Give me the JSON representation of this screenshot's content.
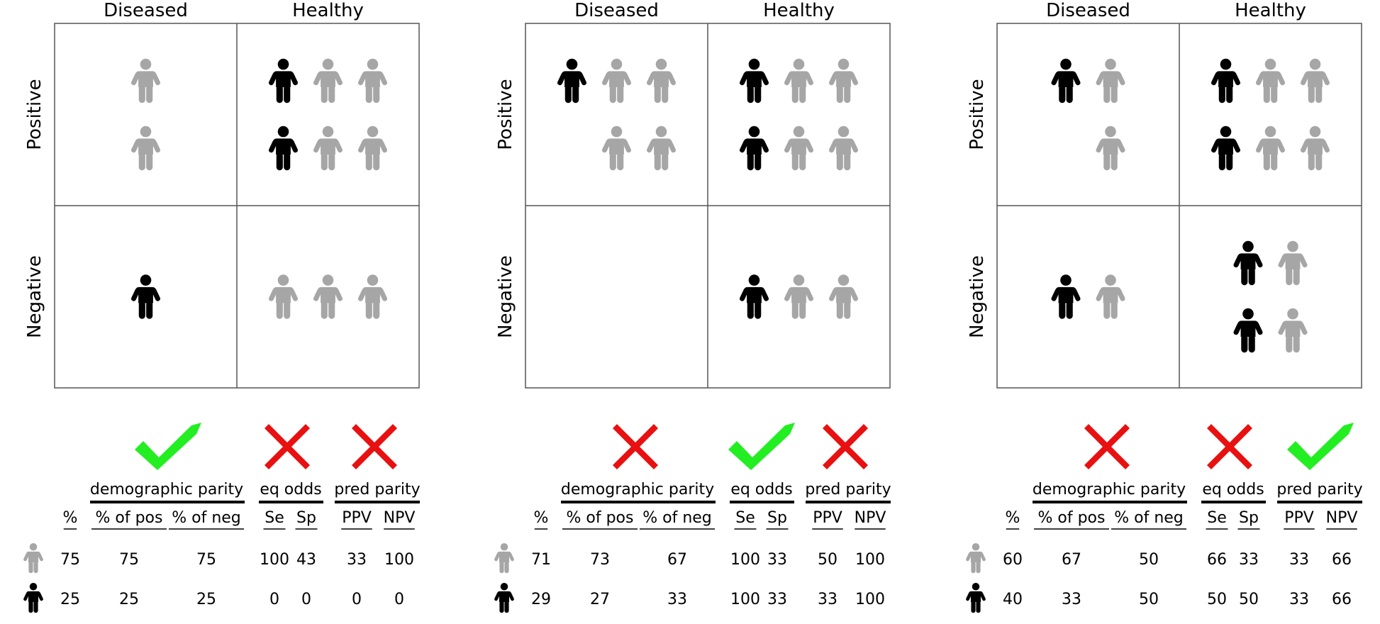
{
  "colors": {
    "gray": "#a6a6a6",
    "black": "#000000",
    "check": "#22ee22",
    "cross": "#e81010",
    "grid": "#555555"
  },
  "icons": {
    "person": "person-icon",
    "check": "check-icon",
    "cross": "cross-icon"
  },
  "labels": {
    "col_diseased": "Diseased",
    "col_healthy": "Healthy",
    "row_positive": "Positive",
    "row_negative": "Negative",
    "demographic_parity": "demographic parity",
    "eq_odds": "eq odds",
    "pred_parity": "pred parity",
    "pct": "%",
    "pct_pos": "% of pos",
    "pct_neg": "% of neg",
    "se": "Se",
    "sp": "Sp",
    "ppv": "PPV",
    "npv": "NPV"
  },
  "panels": [
    {
      "cells": {
        "pos_diseased": [
          [
            "gray"
          ],
          [
            "gray"
          ]
        ],
        "pos_healthy": [
          [
            "black",
            "gray",
            "gray"
          ],
          [
            "black",
            "gray",
            "gray"
          ]
        ],
        "neg_diseased": [
          [
            "black"
          ]
        ],
        "neg_healthy": [
          [
            "gray",
            "gray",
            "gray"
          ]
        ]
      },
      "criteria": {
        "demographic_parity": "check",
        "eq_odds": "cross",
        "pred_parity": "cross"
      },
      "rows": [
        {
          "group": "gray",
          "values": [
            "75",
            "75",
            "75",
            "100",
            "43",
            "33",
            "100"
          ]
        },
        {
          "group": "black",
          "values": [
            "25",
            "25",
            "25",
            "0",
            "0",
            "0",
            "0"
          ]
        }
      ]
    },
    {
      "cells": {
        "pos_diseased": [
          [
            "black",
            "gray",
            "gray"
          ],
          [
            null,
            "gray",
            "gray"
          ]
        ],
        "pos_healthy": [
          [
            "black",
            "gray",
            "gray"
          ],
          [
            "black",
            "gray",
            "gray"
          ]
        ],
        "neg_diseased": [],
        "neg_healthy": [
          [
            "black",
            "gray",
            "gray"
          ]
        ]
      },
      "criteria": {
        "demographic_parity": "cross",
        "eq_odds": "check",
        "pred_parity": "cross"
      },
      "rows": [
        {
          "group": "gray",
          "values": [
            "71",
            "73",
            "67",
            "100",
            "33",
            "50",
            "100"
          ]
        },
        {
          "group": "black",
          "values": [
            "29",
            "27",
            "33",
            "100",
            "33",
            "33",
            "100"
          ]
        }
      ]
    },
    {
      "cells": {
        "pos_diseased": [
          [
            "black",
            "gray"
          ],
          [
            null,
            "gray"
          ]
        ],
        "pos_healthy": [
          [
            "black",
            "gray",
            "gray"
          ],
          [
            "black",
            "gray",
            "gray"
          ]
        ],
        "neg_diseased": [
          [
            "black",
            "gray"
          ]
        ],
        "neg_healthy": [
          [
            "black",
            "gray"
          ],
          [
            "black",
            "gray"
          ]
        ]
      },
      "criteria": {
        "demographic_parity": "cross",
        "eq_odds": "cross",
        "pred_parity": "check"
      },
      "rows": [
        {
          "group": "gray",
          "values": [
            "60",
            "67",
            "50",
            "66",
            "33",
            "33",
            "66"
          ]
        },
        {
          "group": "black",
          "values": [
            "40",
            "33",
            "50",
            "50",
            "50",
            "33",
            "66"
          ]
        }
      ]
    }
  ]
}
